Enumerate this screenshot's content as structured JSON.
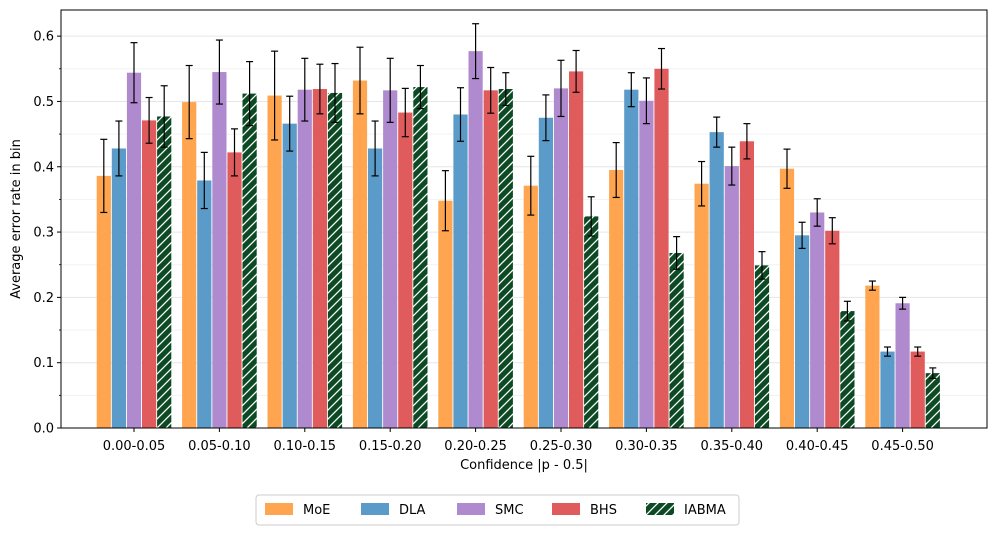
{
  "chart_data": {
    "type": "bar",
    "title": "",
    "xlabel": "Confidence |p - 0.5|",
    "ylabel": "Average error rate in bin",
    "ylim": [
      0,
      0.64
    ],
    "yticks": [
      0.0,
      0.1,
      0.2,
      0.3,
      0.4,
      0.5,
      0.6
    ],
    "ytick_labels": [
      "0.0",
      "0.1",
      "0.2",
      "0.3",
      "0.4",
      "0.5",
      "0.6"
    ],
    "grid": true,
    "legend_position": "bottom-center",
    "categories": [
      "0.00-0.05",
      "0.05-0.10",
      "0.10-0.15",
      "0.15-0.20",
      "0.20-0.25",
      "0.25-0.30",
      "0.30-0.35",
      "0.35-0.40",
      "0.40-0.45",
      "0.45-0.50"
    ],
    "series": [
      {
        "name": "MoE",
        "color": "#FFA54F",
        "hatch": false,
        "values": [
          0.386,
          0.499,
          0.509,
          0.532,
          0.348,
          0.371,
          0.395,
          0.374,
          0.397,
          0.218
        ],
        "errors": [
          0.056,
          0.056,
          0.068,
          0.051,
          0.046,
          0.045,
          0.042,
          0.034,
          0.03,
          0.007
        ]
      },
      {
        "name": "DLA",
        "color": "#5B9BC9",
        "hatch": false,
        "values": [
          0.428,
          0.379,
          0.466,
          0.428,
          0.48,
          0.475,
          0.518,
          0.453,
          0.295,
          0.117
        ],
        "errors": [
          0.042,
          0.043,
          0.042,
          0.042,
          0.041,
          0.035,
          0.026,
          0.023,
          0.02,
          0.007
        ]
      },
      {
        "name": "SMC",
        "color": "#B08ACF",
        "hatch": false,
        "values": [
          0.544,
          0.545,
          0.518,
          0.517,
          0.577,
          0.52,
          0.501,
          0.401,
          0.33,
          0.191
        ],
        "errors": [
          0.046,
          0.049,
          0.048,
          0.049,
          0.042,
          0.043,
          0.035,
          0.029,
          0.021,
          0.009
        ]
      },
      {
        "name": "BHS",
        "color": "#E05C5C",
        "hatch": false,
        "values": [
          0.471,
          0.422,
          0.519,
          0.483,
          0.517,
          0.546,
          0.55,
          0.439,
          0.302,
          0.117
        ],
        "errors": [
          0.035,
          0.036,
          0.038,
          0.037,
          0.035,
          0.032,
          0.031,
          0.027,
          0.02,
          0.007
        ]
      },
      {
        "name": "IABMA",
        "color": "#0B4A23",
        "hatch": true,
        "values": [
          0.477,
          0.512,
          0.513,
          0.522,
          0.519,
          0.324,
          0.268,
          0.249,
          0.179,
          0.084
        ],
        "errors": [
          0.047,
          0.049,
          0.045,
          0.033,
          0.025,
          0.03,
          0.025,
          0.021,
          0.015,
          0.008
        ]
      }
    ]
  }
}
